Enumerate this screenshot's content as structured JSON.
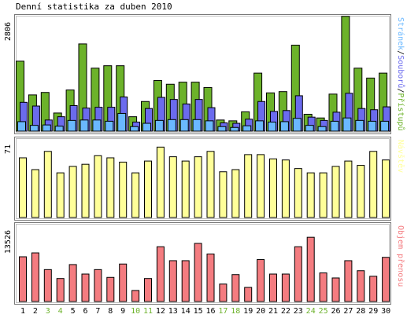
{
  "page": {
    "title": "Denní statistika za duben 2010"
  },
  "colors": {
    "accesses": "#6cb22a",
    "files": "#6b6bee",
    "pages": "#6ab8ff",
    "visits": "#ffff99",
    "traffic": "#f47c80",
    "weekday_label": "#000000",
    "weekend_label": "#6cb22a",
    "frame": "#000000"
  },
  "chart_data": [
    {
      "type": "bar",
      "panel": "top",
      "max_label": "2806",
      "ylim": [
        0,
        2806
      ],
      "grid": false,
      "legend_placement": "right-vertical",
      "legend": [
        {
          "text": "Přístupů",
          "color_key": "accesses"
        },
        {
          "text": "Souborů",
          "color_key": "files"
        },
        {
          "text": "Stránek",
          "color_key": "pages"
        }
      ],
      "legend_separator": "/",
      "categories": [
        "1",
        "2",
        "3",
        "4",
        "5",
        "6",
        "7",
        "8",
        "9",
        "10",
        "11",
        "12",
        "13",
        "14",
        "15",
        "16",
        "17",
        "18",
        "19",
        "20",
        "21",
        "22",
        "23",
        "24",
        "25",
        "26",
        "27",
        "28",
        "29",
        "30"
      ],
      "series": [
        {
          "name": "Přístupů",
          "color_key": "accesses",
          "values": [
            1710,
            890,
            950,
            450,
            1010,
            2130,
            1540,
            1600,
            1600,
            360,
            730,
            1240,
            1150,
            1200,
            1200,
            1070,
            280,
            260,
            480,
            1420,
            940,
            970,
            2100,
            420,
            330,
            910,
            2800,
            1540,
            1300,
            1420
          ]
        },
        {
          "name": "Souborů",
          "color_key": "files",
          "values": [
            710,
            620,
            280,
            360,
            630,
            570,
            590,
            590,
            840,
            230,
            560,
            830,
            780,
            670,
            780,
            580,
            210,
            200,
            300,
            730,
            490,
            510,
            870,
            350,
            270,
            470,
            930,
            560,
            530,
            600
          ]
        },
        {
          "name": "Stránek",
          "color_key": "pages",
          "values": [
            240,
            150,
            160,
            130,
            270,
            280,
            280,
            250,
            440,
            120,
            200,
            270,
            290,
            290,
            290,
            260,
            120,
            100,
            140,
            260,
            230,
            240,
            320,
            150,
            120,
            250,
            330,
            270,
            250,
            250
          ]
        }
      ]
    },
    {
      "type": "bar",
      "panel": "middle",
      "max_label": "71",
      "ylim": [
        0,
        71
      ],
      "grid": false,
      "legend_placement": "right-vertical",
      "legend": [
        {
          "text": "Návštěv",
          "color_key": "visits"
        }
      ],
      "categories": [
        "1",
        "2",
        "3",
        "4",
        "5",
        "6",
        "7",
        "8",
        "9",
        "10",
        "11",
        "12",
        "13",
        "14",
        "15",
        "16",
        "17",
        "18",
        "19",
        "20",
        "21",
        "22",
        "23",
        "24",
        "25",
        "26",
        "27",
        "28",
        "29",
        "30"
      ],
      "series": [
        {
          "name": "Návštěv",
          "color_key": "visits",
          "values": [
            56,
            45,
            62,
            42,
            48,
            50,
            58,
            56,
            52,
            42,
            53,
            66,
            57,
            53,
            57,
            62,
            43,
            45,
            59,
            59,
            55,
            54,
            46,
            42,
            42,
            48,
            53,
            49,
            62,
            54
          ]
        }
      ]
    },
    {
      "type": "bar",
      "panel": "bottom",
      "max_label": "13526",
      "ylim": [
        0,
        13526
      ],
      "grid": false,
      "legend_placement": "right-vertical",
      "legend": [
        {
          "text": "Objem přenosu",
          "color_key": "traffic"
        }
      ],
      "categories": [
        "1",
        "2",
        "3",
        "4",
        "5",
        "6",
        "7",
        "8",
        "9",
        "10",
        "11",
        "12",
        "13",
        "14",
        "15",
        "16",
        "17",
        "18",
        "19",
        "20",
        "21",
        "22",
        "23",
        "24",
        "25",
        "26",
        "27",
        "28",
        "29",
        "30"
      ],
      "series": [
        {
          "name": "Objem přenosu",
          "color_key": "traffic",
          "values": [
            8100,
            8800,
            5800,
            4200,
            6700,
            5000,
            5800,
            4400,
            6800,
            2050,
            4200,
            9900,
            7400,
            7400,
            10500,
            8600,
            3200,
            4900,
            2600,
            7600,
            5000,
            5000,
            9900,
            11600,
            5200,
            4300,
            7400,
            5600,
            4600,
            8000
          ]
        }
      ]
    }
  ],
  "x_axis": {
    "day_labels": [
      "1",
      "2",
      "3",
      "4",
      "5",
      "6",
      "7",
      "8",
      "9",
      "10",
      "11",
      "12",
      "13",
      "14",
      "15",
      "16",
      "17",
      "18",
      "19",
      "20",
      "21",
      "22",
      "23",
      "24",
      "25",
      "26",
      "27",
      "28",
      "29",
      "30"
    ],
    "weekend_days": [
      "3",
      "4",
      "10",
      "11",
      "17",
      "18",
      "24",
      "25"
    ]
  }
}
